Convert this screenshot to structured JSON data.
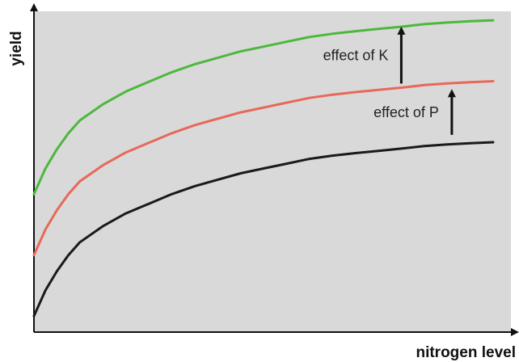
{
  "chart_data": {
    "type": "line",
    "title": "",
    "xlabel": "nitrogen level",
    "ylabel": "yield",
    "xlim": [
      0,
      100
    ],
    "ylim": [
      0,
      100
    ],
    "grid": false,
    "tick_labels": false,
    "x": [
      0,
      2.5,
      5,
      7.5,
      10,
      15,
      20,
      25,
      30,
      35,
      40,
      45,
      50,
      55,
      60,
      65,
      70,
      75,
      80,
      85,
      90,
      95,
      100
    ],
    "series": [
      {
        "color": "#1a1a1a",
        "values": [
          5,
          13,
          19,
          24,
          28,
          33,
          37,
          40,
          43,
          45.5,
          47.5,
          49.5,
          51,
          52.5,
          54,
          55,
          55.8,
          56.5,
          57.2,
          58,
          58.5,
          58.9,
          59.2
        ]
      },
      {
        "color": "#e8685a",
        "values": [
          24,
          32,
          38,
          43,
          47,
          52,
          56,
          59,
          62,
          64.5,
          66.5,
          68.5,
          70,
          71.5,
          73,
          74,
          74.8,
          75.5,
          76.2,
          77,
          77.5,
          77.9,
          78.2
        ]
      },
      {
        "color": "#4cb83c",
        "values": [
          43,
          51,
          57,
          62,
          66,
          71,
          75,
          78,
          81,
          83.5,
          85.5,
          87.5,
          89,
          90.5,
          92,
          93,
          93.8,
          94.5,
          95.2,
          96,
          96.5,
          96.9,
          97.2
        ]
      }
    ],
    "annotations": [
      {
        "text": "effect of K",
        "arrow_x": 80,
        "arrow_from": 77.5,
        "arrow_to": 95
      },
      {
        "text": "effect of P",
        "arrow_x": 91,
        "arrow_from": 61.5,
        "arrow_to": 75.5
      }
    ],
    "plot_background": "#d9d9d9",
    "axis_color": "#111111"
  }
}
